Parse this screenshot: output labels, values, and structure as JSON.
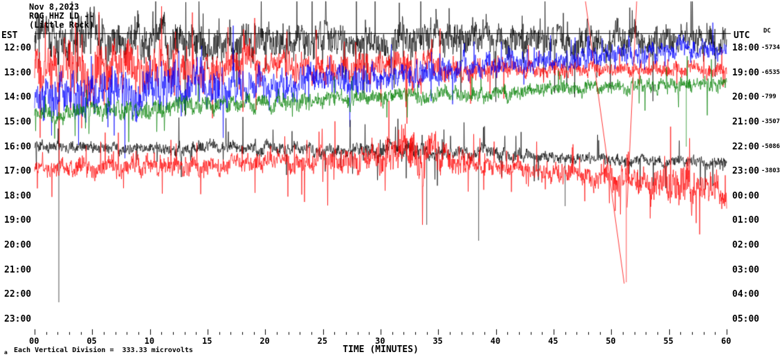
{
  "header": {
    "date": "Nov 8,2023",
    "station_line": "ROG HHZ LD --",
    "location_line": "(Little Rock)"
  },
  "axis": {
    "left_title": "EST",
    "right_title": "UTC",
    "dc_title": "DC",
    "x_title": "TIME (MINUTES)",
    "left_labels": [
      "12:00",
      "13:00",
      "14:00",
      "15:00",
      "16:00",
      "17:00",
      "18:00",
      "19:00",
      "20:00",
      "21:00",
      "22:00",
      "23:00"
    ],
    "right_labels": [
      "18:00",
      "19:00",
      "20:00",
      "21:00",
      "22:00",
      "23:00",
      "00:00",
      "01:00",
      "02:00",
      "03:00",
      "04:00",
      "05:00"
    ],
    "dc_values": [
      "-5734",
      "-6535",
      "-799",
      "-3507",
      "-5086",
      "-3803"
    ],
    "x_tick_labels": [
      "00",
      "05",
      "10",
      "15",
      "20",
      "25",
      "30",
      "35",
      "40",
      "45",
      "50",
      "55",
      "60"
    ]
  },
  "footnote": {
    "marker": "a",
    "text": "Each Vertical Division =  333.33 microvolts"
  },
  "chart_data": {
    "type": "line",
    "title": "Helicorder seismogram, station ROG HHZ LD, Nov 8 2023",
    "xlabel": "TIME (MINUTES)",
    "ylabel_left": "EST",
    "ylabel_right": "UTC",
    "x_range_minutes": [
      0,
      60
    ],
    "grid": false,
    "vertical_division_microvolts": 333.33,
    "trace_color_cycle": [
      "#000000",
      "#ff0000",
      "#0000ff",
      "#008000"
    ],
    "rows": [
      {
        "est": "12:00",
        "utc": "18:00",
        "dc": -5734,
        "color": "#000000",
        "activity": "very high continuous noise, spikes clipped at top, one large downward spike near minute 2"
      },
      {
        "est": "13:00",
        "utc": "19:00",
        "dc": -6535,
        "color": "#ff0000",
        "activity": "high noise first half, calmer second half"
      },
      {
        "est": "14:00",
        "utc": "20:00",
        "dc": -799,
        "color": "#0000ff",
        "activity": "high noise early, steady upward baseline drift through the hour"
      },
      {
        "est": "15:00",
        "utc": "21:00",
        "dc": -3507,
        "color": "#008000",
        "activity": "moderate noise, gradual upward drift, small downward spike near minute 57"
      },
      {
        "est": "16:00",
        "utc": "22:00",
        "dc": -5086,
        "color": "#000000",
        "activity": "moderate noise, slight downward drift, several large downward spikes mid-hour"
      },
      {
        "est": "17:00",
        "utc": "23:00",
        "dc": -3803,
        "color": "#ff0000",
        "activity": "moderate noise, burst near minutes 30-35, telemetry glitch and large downward spike near minute 51"
      },
      {
        "est": "18:00",
        "utc": "00:00",
        "dc": null,
        "color": null,
        "activity": "no data"
      },
      {
        "est": "19:00",
        "utc": "01:00",
        "dc": null,
        "color": null,
        "activity": "no data"
      },
      {
        "est": "20:00",
        "utc": "02:00",
        "dc": null,
        "color": null,
        "activity": "no data"
      },
      {
        "est": "21:00",
        "utc": "03:00",
        "dc": null,
        "color": null,
        "activity": "no data"
      },
      {
        "est": "22:00",
        "utc": "04:00",
        "dc": null,
        "color": null,
        "activity": "no data"
      },
      {
        "est": "23:00",
        "utc": "05:00",
        "dc": null,
        "color": null,
        "activity": "no data"
      }
    ],
    "series": [
      {
        "row": 0,
        "name": "12:00 EST",
        "color": "#000000",
        "seed": 101,
        "base": 58,
        "amp": [
          [
            0,
            20
          ],
          [
            3,
            26
          ],
          [
            8,
            24
          ],
          [
            15,
            22
          ],
          [
            22,
            20
          ],
          [
            30,
            18
          ],
          [
            38,
            20
          ],
          [
            45,
            16
          ],
          [
            52,
            17
          ],
          [
            60,
            15
          ]
        ],
        "drift": [
          [
            0,
            0
          ],
          [
            60,
            0
          ]
        ],
        "spike_prob": 0.05,
        "spike_gain": 4,
        "down_spikes": [
          {
            "min": 2.1,
            "to": 437
          }
        ]
      },
      {
        "row": 1,
        "name": "13:00 EST",
        "color": "#ff0000",
        "seed": 202,
        "base": 100,
        "amp": [
          [
            0,
            26
          ],
          [
            4,
            30
          ],
          [
            10,
            24
          ],
          [
            18,
            20
          ],
          [
            25,
            14
          ],
          [
            30,
            16
          ],
          [
            33,
            22
          ],
          [
            36,
            14
          ],
          [
            42,
            10
          ],
          [
            50,
            8
          ],
          [
            60,
            9
          ]
        ],
        "drift": [
          [
            0,
            0
          ],
          [
            60,
            0
          ]
        ],
        "spike_prob": 0.04,
        "spike_gain": 4,
        "down_spikes": []
      },
      {
        "row": 2,
        "name": "14:00 EST",
        "color": "#0000ff",
        "seed": 303,
        "base": 136,
        "amp": [
          [
            0,
            22
          ],
          [
            5,
            28
          ],
          [
            12,
            26
          ],
          [
            20,
            18
          ],
          [
            28,
            16
          ],
          [
            35,
            14
          ],
          [
            45,
            12
          ],
          [
            55,
            11
          ],
          [
            60,
            11
          ]
        ],
        "drift": [
          [
            0,
            0
          ],
          [
            8,
            -2
          ],
          [
            20,
            -12
          ],
          [
            30,
            -25
          ],
          [
            40,
            -42
          ],
          [
            50,
            -58
          ],
          [
            60,
            -68
          ]
        ],
        "spike_prob": 0.03,
        "spike_gain": 3,
        "down_spikes": []
      },
      {
        "row": 3,
        "name": "15:00 EST",
        "color": "#008000",
        "seed": 404,
        "base": 162,
        "amp": [
          [
            0,
            9
          ],
          [
            10,
            11
          ],
          [
            20,
            10
          ],
          [
            30,
            9
          ],
          [
            40,
            8
          ],
          [
            50,
            8
          ],
          [
            60,
            9
          ]
        ],
        "drift": [
          [
            0,
            0
          ],
          [
            10,
            -6
          ],
          [
            20,
            -14
          ],
          [
            30,
            -22
          ],
          [
            40,
            -30
          ],
          [
            50,
            -36
          ],
          [
            60,
            -40
          ]
        ],
        "spike_prob": 0.02,
        "spike_gain": 4,
        "down_spikes": [
          {
            "min": 56.5,
            "to": 212
          }
        ]
      },
      {
        "row": 4,
        "name": "16:00 EST",
        "color": "#000000",
        "seed": 505,
        "base": 212,
        "amp": [
          [
            0,
            7
          ],
          [
            8,
            6
          ],
          [
            16,
            8
          ],
          [
            24,
            7
          ],
          [
            32,
            9
          ],
          [
            40,
            7
          ],
          [
            50,
            6
          ],
          [
            60,
            7
          ]
        ],
        "drift": [
          [
            0,
            0
          ],
          [
            25,
            3
          ],
          [
            40,
            10
          ],
          [
            50,
            18
          ],
          [
            60,
            24
          ]
        ],
        "spike_prob": 0.03,
        "spike_gain": 6,
        "down_spikes": [
          {
            "min": 34,
            "to": 325
          },
          {
            "min": 38.5,
            "to": 348
          },
          {
            "min": 46,
            "to": 298
          }
        ]
      },
      {
        "row": 5,
        "name": "17:00 EST",
        "color": "#ff0000",
        "seed": 606,
        "base": 242,
        "amp": [
          [
            0,
            10
          ],
          [
            8,
            12
          ],
          [
            16,
            10
          ],
          [
            24,
            12
          ],
          [
            30,
            20
          ],
          [
            34,
            26
          ],
          [
            38,
            12
          ],
          [
            44,
            10
          ],
          [
            50,
            14
          ],
          [
            55,
            22
          ],
          [
            60,
            18
          ]
        ],
        "drift": [
          [
            0,
            0
          ],
          [
            15,
            -2
          ],
          [
            28,
            -8
          ],
          [
            33,
            -25
          ],
          [
            37,
            -10
          ],
          [
            43,
            5
          ],
          [
            50,
            15
          ],
          [
            55,
            28
          ],
          [
            60,
            30
          ]
        ],
        "spike_prob": 0.05,
        "spike_gain": 4,
        "down_spikes": [
          {
            "min": 51.3,
            "to": 408
          }
        ]
      }
    ],
    "glitch_lines": [
      {
        "color": "#ff0000",
        "points": [
          [
            846,
            2
          ],
          [
            902,
            410
          ]
        ]
      },
      {
        "color": "#ff0000",
        "points": [
          [
            920,
            2
          ],
          [
            906,
            300
          ]
        ]
      }
    ]
  }
}
